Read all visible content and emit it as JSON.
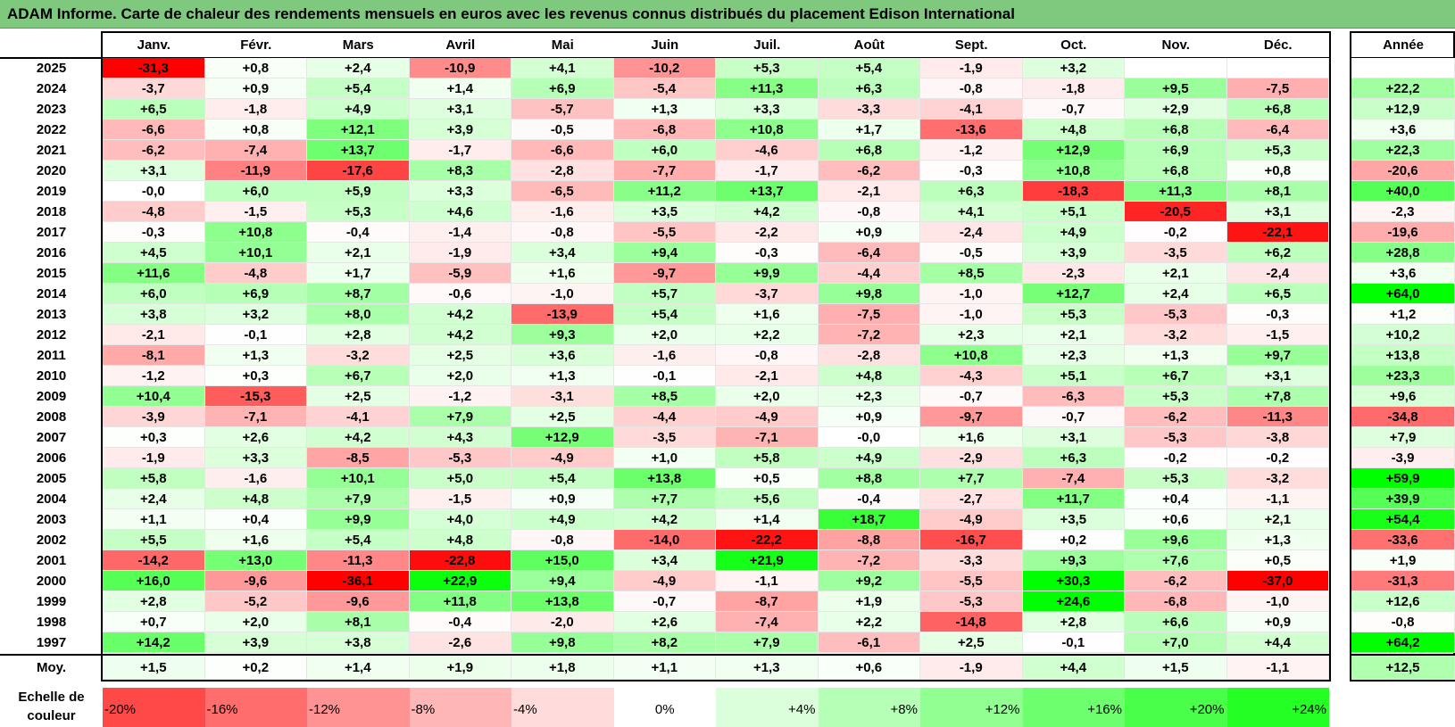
{
  "title": "ADAM Informe. Carte de chaleur des rendements mensuels en euros avec les revenus connus distribués du placement Edison International",
  "chart_data": {
    "type": "heatmap",
    "title": "ADAM Informe. Carte de chaleur des rendements mensuels en euros avec les revenus connus distribués du placement Edison International",
    "columns": [
      "Janv.",
      "Févr.",
      "Mars",
      "Avril",
      "Mai",
      "Juin",
      "Juil.",
      "Août",
      "Sept.",
      "Oct.",
      "Nov.",
      "Déc."
    ],
    "year_column_label": "Année",
    "average_row_label": "Moy.",
    "rows": [
      {
        "year": "2025",
        "months": [
          -31.3,
          0.8,
          2.4,
          -10.9,
          4.1,
          -10.2,
          5.3,
          5.4,
          -1.9,
          3.2,
          null,
          null
        ],
        "annual": null
      },
      {
        "year": "2024",
        "months": [
          -3.7,
          0.9,
          5.4,
          1.4,
          6.9,
          -5.4,
          11.3,
          6.3,
          -0.8,
          -1.8,
          9.5,
          -7.5
        ],
        "annual": 22.2
      },
      {
        "year": "2023",
        "months": [
          6.5,
          -1.8,
          4.9,
          3.1,
          -5.7,
          1.3,
          3.3,
          -3.3,
          -4.1,
          -0.7,
          2.9,
          6.8
        ],
        "annual": 12.9
      },
      {
        "year": "2022",
        "months": [
          -6.6,
          0.8,
          12.1,
          3.9,
          -0.5,
          -6.8,
          10.8,
          1.7,
          -13.6,
          4.8,
          6.8,
          -6.4
        ],
        "annual": 3.6
      },
      {
        "year": "2021",
        "months": [
          -6.2,
          -7.4,
          13.7,
          -1.7,
          -6.6,
          6.0,
          -4.6,
          6.8,
          -1.2,
          12.9,
          6.9,
          5.3
        ],
        "annual": 22.3
      },
      {
        "year": "2020",
        "months": [
          3.1,
          -11.9,
          -17.6,
          8.3,
          -2.8,
          -7.7,
          -1.7,
          -6.2,
          -0.3,
          10.8,
          6.8,
          0.8
        ],
        "annual": -20.6
      },
      {
        "year": "2019",
        "months": [
          -0.0,
          6.0,
          5.9,
          3.3,
          -6.5,
          11.2,
          13.7,
          -2.1,
          6.3,
          -18.3,
          11.3,
          8.1
        ],
        "annual": 40.0
      },
      {
        "year": "2018",
        "months": [
          -4.8,
          -1.5,
          5.3,
          4.6,
          -1.6,
          3.5,
          4.2,
          -0.8,
          4.1,
          5.1,
          -20.5,
          3.1
        ],
        "annual": -2.3
      },
      {
        "year": "2017",
        "months": [
          -0.3,
          10.8,
          -0.4,
          -1.4,
          -0.8,
          -5.5,
          -2.2,
          0.9,
          -2.4,
          4.9,
          -0.2,
          -22.1
        ],
        "annual": -19.6
      },
      {
        "year": "2016",
        "months": [
          4.5,
          10.1,
          2.1,
          -1.9,
          3.4,
          9.4,
          -0.3,
          -6.4,
          -0.5,
          3.9,
          -3.5,
          6.2
        ],
        "annual": 28.8
      },
      {
        "year": "2015",
        "months": [
          11.6,
          -4.8,
          1.7,
          -5.9,
          1.6,
          -9.7,
          9.9,
          -4.4,
          8.5,
          -2.3,
          2.1,
          -2.4
        ],
        "annual": 3.6
      },
      {
        "year": "2014",
        "months": [
          6.0,
          6.9,
          8.7,
          -0.6,
          -1.0,
          5.7,
          -3.7,
          9.8,
          -1.0,
          12.7,
          2.4,
          6.5
        ],
        "annual": 64.0
      },
      {
        "year": "2013",
        "months": [
          3.8,
          3.2,
          8.0,
          4.2,
          -13.9,
          5.4,
          1.6,
          -7.5,
          -1.0,
          5.3,
          -5.3,
          -0.3
        ],
        "annual": 1.2
      },
      {
        "year": "2012",
        "months": [
          -2.1,
          -0.1,
          2.8,
          4.2,
          9.3,
          2.0,
          2.2,
          -7.2,
          2.3,
          2.1,
          -3.2,
          -1.5
        ],
        "annual": 10.2
      },
      {
        "year": "2011",
        "months": [
          -8.1,
          1.3,
          -3.2,
          2.5,
          3.6,
          -1.6,
          -0.8,
          -2.8,
          10.8,
          2.3,
          1.3,
          9.7
        ],
        "annual": 13.8
      },
      {
        "year": "2010",
        "months": [
          -1.2,
          0.3,
          6.7,
          2.0,
          1.3,
          -0.1,
          -2.1,
          4.8,
          -4.3,
          5.1,
          6.7,
          3.1
        ],
        "annual": 23.3
      },
      {
        "year": "2009",
        "months": [
          10.4,
          -15.3,
          2.5,
          -1.2,
          -3.1,
          8.5,
          2.0,
          2.3,
          -0.7,
          -6.3,
          5.3,
          7.8
        ],
        "annual": 9.6
      },
      {
        "year": "2008",
        "months": [
          -3.9,
          -7.1,
          -4.1,
          7.9,
          2.5,
          -4.4,
          -4.9,
          0.9,
          -9.7,
          -0.7,
          -6.2,
          -11.3
        ],
        "annual": -34.8
      },
      {
        "year": "2007",
        "months": [
          0.3,
          2.6,
          4.2,
          4.3,
          12.9,
          -3.5,
          -7.1,
          -0.0,
          1.6,
          3.1,
          -5.3,
          -3.8
        ],
        "annual": 7.9
      },
      {
        "year": "2006",
        "months": [
          -1.9,
          3.3,
          -8.5,
          -5.3,
          -4.9,
          1.0,
          5.8,
          4.9,
          -2.9,
          6.3,
          -0.2,
          -0.2
        ],
        "annual": -3.9
      },
      {
        "year": "2005",
        "months": [
          5.8,
          -1.6,
          10.1,
          5.0,
          5.4,
          13.8,
          0.5,
          8.8,
          7.7,
          -7.4,
          5.3,
          -3.2
        ],
        "annual": 59.9
      },
      {
        "year": "2004",
        "months": [
          2.4,
          4.8,
          7.9,
          -1.5,
          0.9,
          7.7,
          5.6,
          -0.4,
          -2.7,
          11.7,
          0.4,
          -1.1
        ],
        "annual": 39.9
      },
      {
        "year": "2003",
        "months": [
          1.1,
          0.4,
          9.9,
          4.0,
          4.9,
          4.2,
          1.4,
          18.7,
          -4.9,
          3.5,
          0.6,
          2.1
        ],
        "annual": 54.4
      },
      {
        "year": "2002",
        "months": [
          5.5,
          1.6,
          5.4,
          4.8,
          -0.8,
          -14.0,
          -22.2,
          -8.8,
          -16.7,
          0.2,
          9.6,
          1.3
        ],
        "annual": -33.6
      },
      {
        "year": "2001",
        "months": [
          -14.2,
          13.0,
          -11.3,
          -22.8,
          15.0,
          3.4,
          21.9,
          -7.2,
          -3.3,
          9.3,
          7.6,
          0.5
        ],
        "annual": 1.9
      },
      {
        "year": "2000",
        "months": [
          16.0,
          -9.6,
          -36.1,
          22.9,
          9.4,
          -4.9,
          -1.1,
          9.2,
          -5.5,
          30.3,
          -6.2,
          -37.0
        ],
        "annual": -31.3
      },
      {
        "year": "1999",
        "months": [
          2.8,
          -5.2,
          -9.6,
          11.8,
          13.8,
          -0.7,
          -8.7,
          1.9,
          -5.3,
          24.6,
          -6.8,
          -1.0
        ],
        "annual": 12.6
      },
      {
        "year": "1998",
        "months": [
          0.7,
          2.0,
          8.1,
          -0.4,
          -2.0,
          2.6,
          -7.4,
          2.2,
          -14.8,
          2.8,
          6.6,
          0.9
        ],
        "annual": -0.8
      },
      {
        "year": "1997",
        "months": [
          14.2,
          3.9,
          3.8,
          -2.6,
          9.8,
          8.2,
          7.9,
          -6.1,
          2.5,
          -0.1,
          7.0,
          4.4
        ],
        "annual": 64.2
      }
    ],
    "average": {
      "months": [
        1.5,
        0.2,
        1.4,
        1.9,
        1.8,
        1.1,
        1.3,
        0.6,
        -1.9,
        4.4,
        1.5,
        -1.1
      ],
      "annual": 12.5
    },
    "scale_label": "Echelle de couleur",
    "scale": [
      {
        "label": "-20%",
        "value": -20
      },
      {
        "label": "-16%",
        "value": -16
      },
      {
        "label": "-12%",
        "value": -12
      },
      {
        "label": "-8%",
        "value": -8
      },
      {
        "label": "-4%",
        "value": -4
      },
      {
        "label": "0%",
        "value": 0
      },
      {
        "label": "+4%",
        "value": 4
      },
      {
        "label": "+8%",
        "value": 8
      },
      {
        "label": "+12%",
        "value": 12
      },
      {
        "label": "+16%",
        "value": 16
      },
      {
        "label": "+20%",
        "value": 20
      },
      {
        "label": "+24%",
        "value": 24
      }
    ],
    "colors": {
      "negative": "#ff0000",
      "zero": "#ffffff",
      "positive": "#00ff00",
      "title_bar": "#7fc97f"
    }
  }
}
